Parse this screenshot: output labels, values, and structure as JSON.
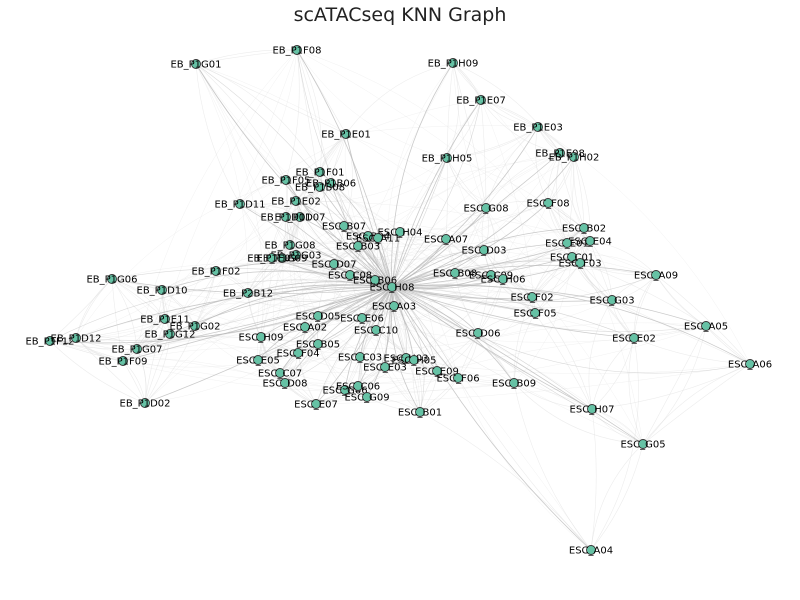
{
  "title": "scATACseq KNN Graph",
  "colors": {
    "node_fill": "#66c2a5",
    "node_stroke": "#333333",
    "edge_major": "#b8b8b8",
    "edge_minor": "#dddddd"
  },
  "hub_node": "ESC_H08",
  "nodes": [
    "EB_P1F08",
    "EB_P1G01",
    "EB_P1H09",
    "EB_P1E07",
    "EB_P1E03",
    "EB_P1E01",
    "EB_P1H05",
    "EB_P1E08",
    "EB_P1H02",
    "EB_P1F01",
    "EB_P1F05",
    "EB_P1B06",
    "EB_P1B08",
    "EB_P1D11",
    "EB_P1E02",
    "ESC_G08",
    "ESC_F08",
    "EB_P1D07",
    "EB_P1D01",
    "ESC_B07",
    "ESC_H04",
    "ESC_A07",
    "ESC_B02",
    "ESC_E04",
    "ESC_B04",
    "ESC_A11",
    "ESC_B03",
    "EB_P1G08",
    "EB_P1G03",
    "EB_P1G09",
    "EB_P1E09",
    "ESC_D03",
    "ESC_E01",
    "ESC_C01",
    "ESC_F03",
    "ESC_D07",
    "ESC_C08",
    "ESC_B06",
    "ESC_B08",
    "ESC_C09",
    "ESC_H06",
    "EB_P1F02",
    "ESC_A09",
    "EB_P1G06",
    "EB_P1D10",
    "EB_P2B12",
    "ESC_F02",
    "ESC_G03",
    "ESC_F05",
    "ESC_D05",
    "EB_P1E11",
    "EB_P1G12",
    "EB_P1G02",
    "ESC_A02",
    "ESC_E06",
    "ESC_D06",
    "ESC_A05",
    "EB_P1F12",
    "EB_P1D12",
    "ESC_H09",
    "ESC_C10",
    "ESC_E02",
    "EB_P1G07",
    "ESC_B05",
    "EB_P1F09",
    "ESC_F04",
    "ESC_E05",
    "ESC_C03",
    "ESC_H03",
    "ESC_H05",
    "ESC_E03",
    "ESC_E09",
    "ESC_A06",
    "ESC_C07",
    "ESC_F06",
    "ESC_D08",
    "ESC_B09",
    "ESC_G06",
    "ESC_C06",
    "ESC_H08",
    "EB_P1D02",
    "ESC_E07",
    "ESC_B01",
    "ESC_H07",
    "ESC_G05",
    "ESC_A04",
    "ESC_A03",
    "ESC_G09"
  ]
}
